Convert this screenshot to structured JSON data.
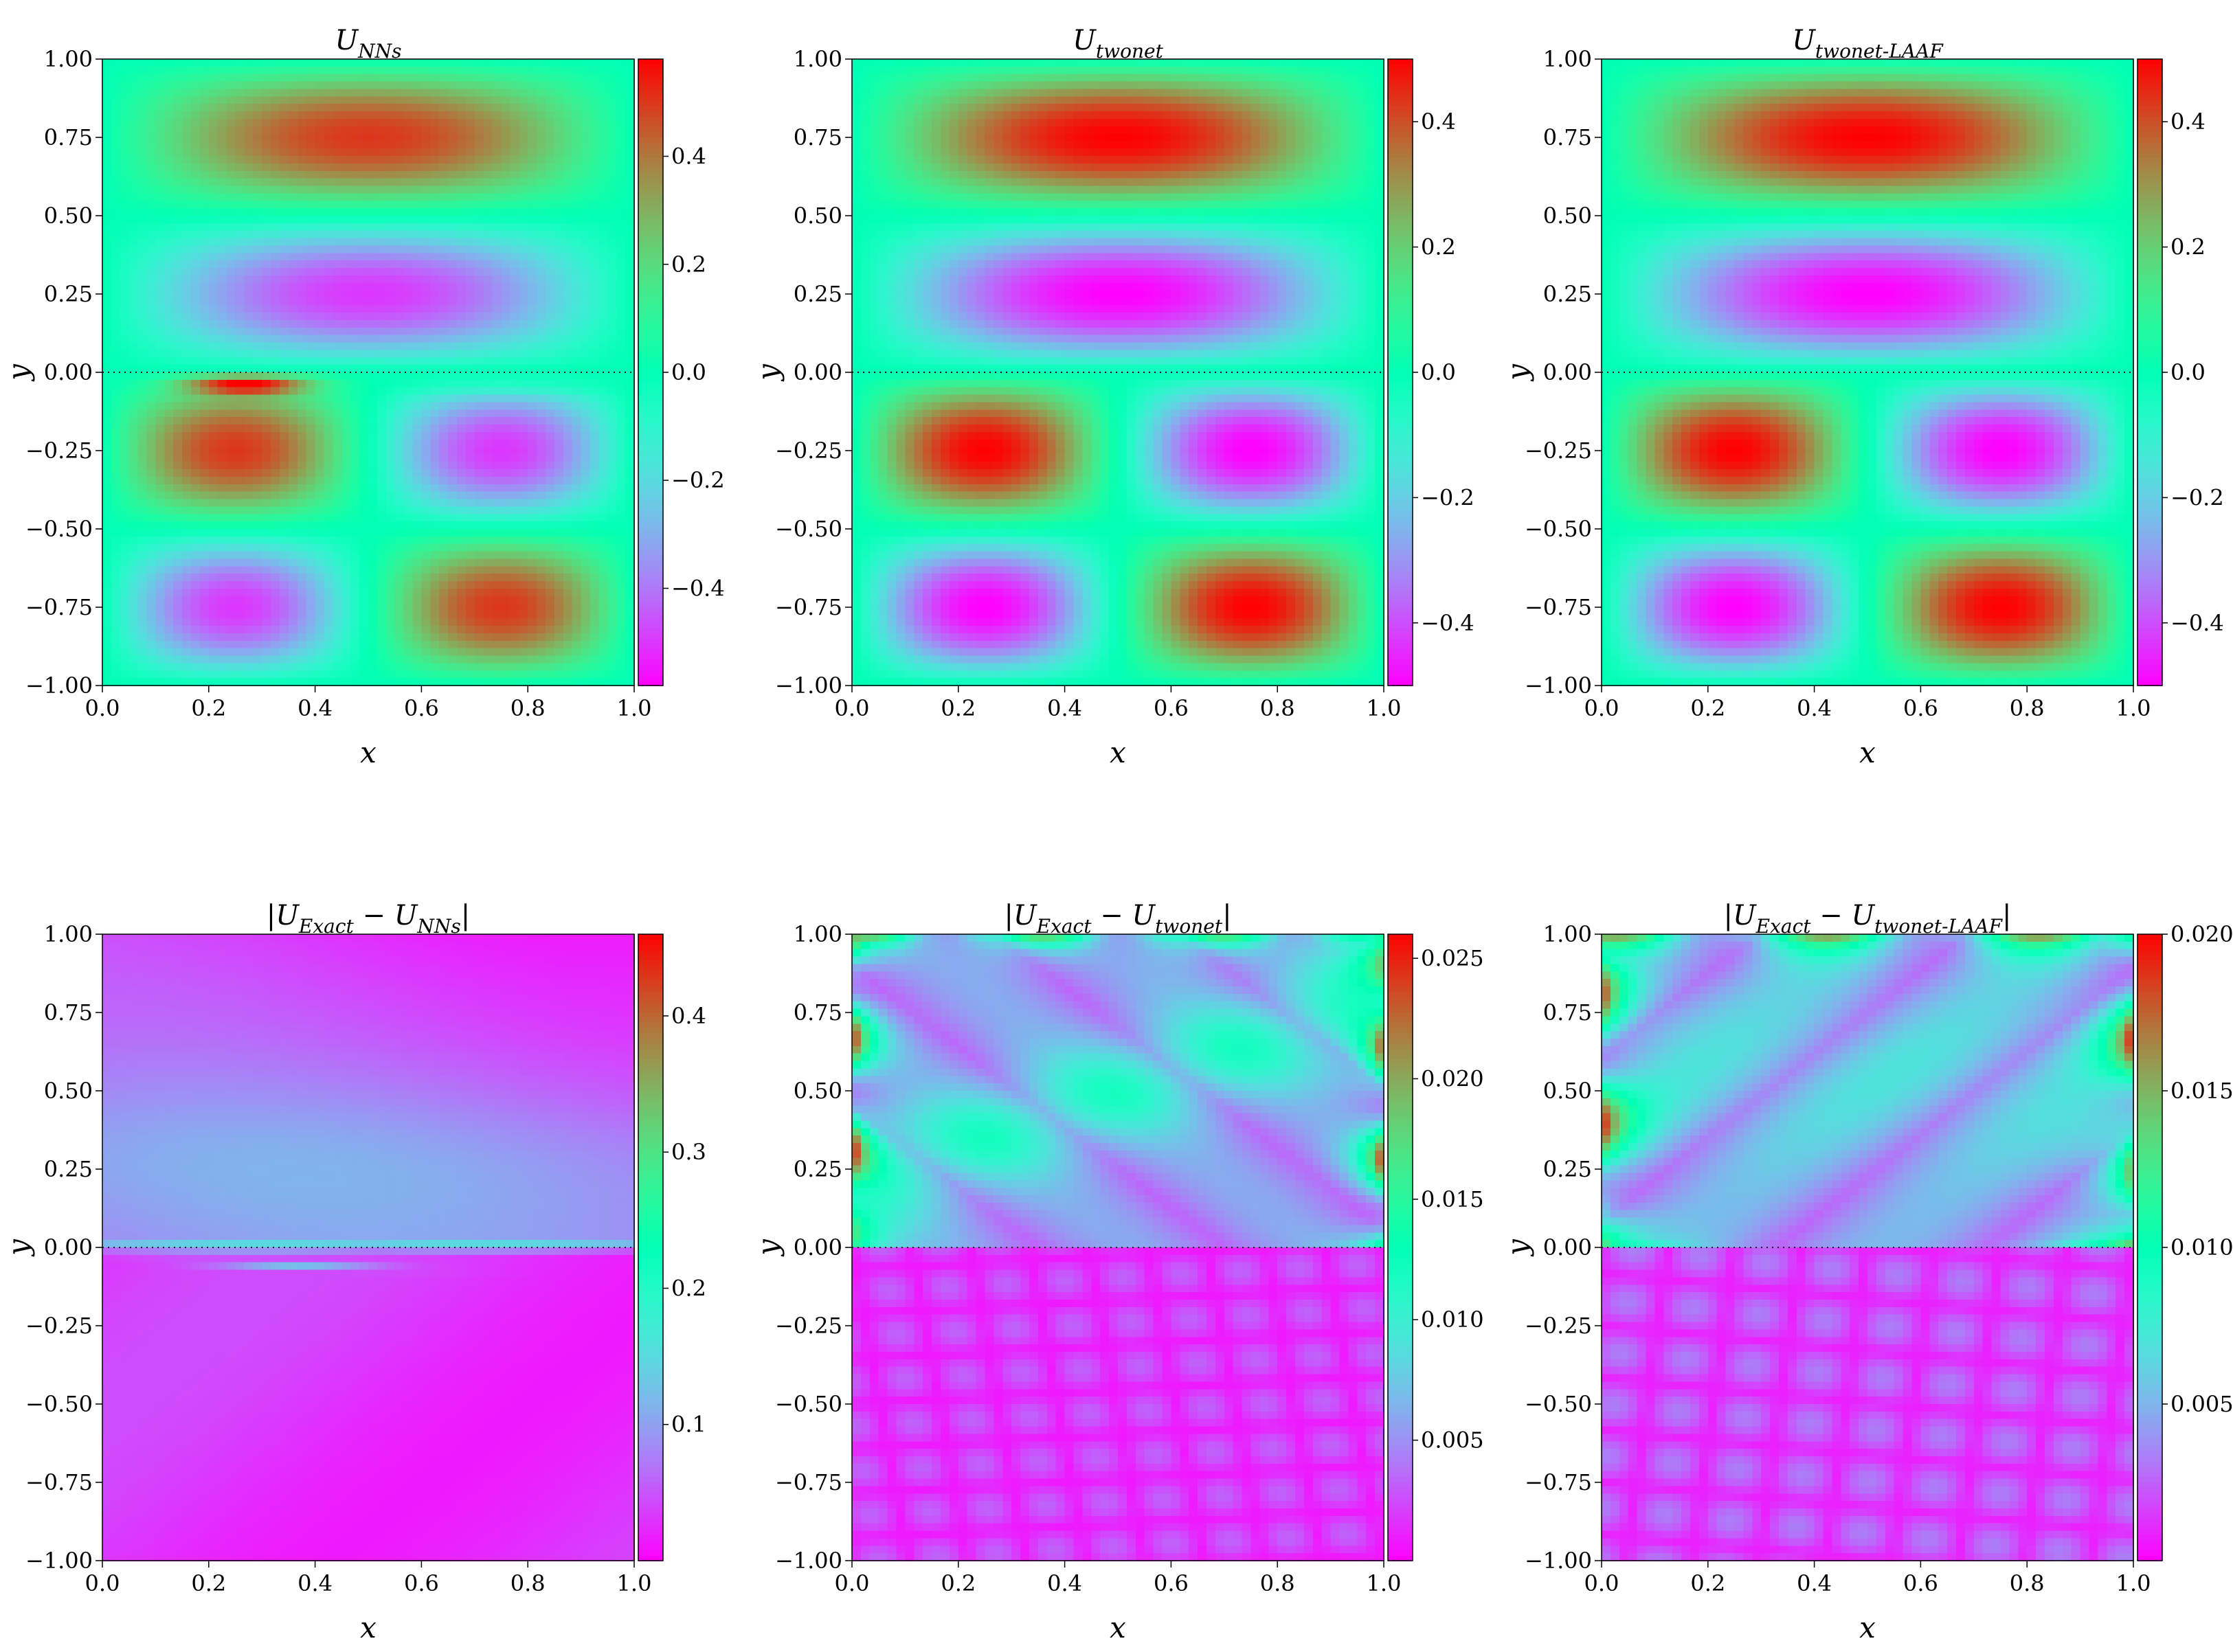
{
  "figure": {
    "type": "heatmap",
    "colormap": "rainbow",
    "xlabel": "x",
    "ylabel": "y"
  },
  "chart_data": [
    {
      "type": "heatmap",
      "title": "U_{NNs}",
      "title_parts": [
        {
          "t": "|U",
          "s": false
        },
        {
          "t": "NNs",
          "s": true
        }
      ],
      "field": "prediction",
      "variant": "nns",
      "xlabel": "x",
      "ylabel": "y",
      "xlim": [
        0.0,
        1.0
      ],
      "ylim": [
        -1.0,
        1.0
      ],
      "xticks": [
        "0.0",
        "0.2",
        "0.4",
        "0.6",
        "0.8",
        "1.0"
      ],
      "yticks": [
        "−1.00",
        "−0.75",
        "−0.50",
        "−0.25",
        "0.00",
        "0.25",
        "0.50",
        "0.75",
        "1.00"
      ],
      "colorbar": {
        "min": -0.58,
        "max": 0.58,
        "ticks": [
          0.4,
          0.2,
          0.0,
          -0.2,
          -0.4
        ],
        "tick_labels": [
          "0.4",
          "0.2",
          "0.0",
          "−0.2",
          "−0.4"
        ]
      },
      "description_values": {
        "upper_max": 0.5,
        "upper_min": -0.5
      }
    },
    {
      "type": "heatmap",
      "title": "U_{twonet}",
      "field": "prediction",
      "variant": "twonet",
      "xlabel": "x",
      "ylabel": "y",
      "xlim": [
        0.0,
        1.0
      ],
      "ylim": [
        -1.0,
        1.0
      ],
      "xticks": [
        "0.0",
        "0.2",
        "0.4",
        "0.6",
        "0.8",
        "1.0"
      ],
      "yticks": [
        "−1.00",
        "−0.75",
        "−0.50",
        "−0.25",
        "0.00",
        "0.25",
        "0.50",
        "0.75",
        "1.00"
      ],
      "colorbar": {
        "min": -0.5,
        "max": 0.5,
        "ticks": [
          0.4,
          0.2,
          0.0,
          -0.2,
          -0.4
        ],
        "tick_labels": [
          "0.4",
          "0.2",
          "0.0",
          "−0.2",
          "−0.4"
        ]
      }
    },
    {
      "type": "heatmap",
      "title": "U_{twonet-LAAF}",
      "field": "prediction",
      "variant": "laaf",
      "xlabel": "x",
      "ylabel": "y",
      "xlim": [
        0.0,
        1.0
      ],
      "ylim": [
        -1.0,
        1.0
      ],
      "xticks": [
        "0.0",
        "0.2",
        "0.4",
        "0.6",
        "0.8",
        "1.0"
      ],
      "yticks": [
        "−1.00",
        "−0.75",
        "−0.50",
        "−0.25",
        "0.00",
        "0.25",
        "0.50",
        "0.75",
        "1.00"
      ],
      "colorbar": {
        "min": -0.5,
        "max": 0.5,
        "ticks": [
          0.4,
          0.2,
          0.0,
          -0.2,
          -0.4
        ],
        "tick_labels": [
          "0.4",
          "0.2",
          "0.0",
          "−0.2",
          "−0.4"
        ]
      }
    },
    {
      "type": "heatmap",
      "title": "|U_{Exact} − U_{NNs}|",
      "field": "abs_error",
      "variant": "nns",
      "xlabel": "x",
      "ylabel": "y",
      "xlim": [
        0.0,
        1.0
      ],
      "ylim": [
        -1.0,
        1.0
      ],
      "xticks": [
        "0.0",
        "0.2",
        "0.4",
        "0.6",
        "0.8",
        "1.0"
      ],
      "yticks": [
        "−1.00",
        "−0.75",
        "−0.50",
        "−0.25",
        "0.00",
        "0.25",
        "0.50",
        "0.75",
        "1.00"
      ],
      "colorbar": {
        "min": 0.0,
        "max": 0.46,
        "ticks": [
          0.4,
          0.3,
          0.2,
          0.1
        ],
        "tick_labels": [
          "0.4",
          "0.3",
          "0.2",
          "0.1"
        ]
      }
    },
    {
      "type": "heatmap",
      "title": "|U_{Exact} − U_{twonet}|",
      "field": "abs_error",
      "variant": "twonet",
      "xlabel": "x",
      "ylabel": "y",
      "xlim": [
        0.0,
        1.0
      ],
      "ylim": [
        -1.0,
        1.0
      ],
      "xticks": [
        "0.0",
        "0.2",
        "0.4",
        "0.6",
        "0.8",
        "1.0"
      ],
      "yticks": [
        "−1.00",
        "−0.75",
        "−0.50",
        "−0.25",
        "0.00",
        "0.25",
        "0.50",
        "0.75",
        "1.00"
      ],
      "colorbar": {
        "min": 0.0,
        "max": 0.026,
        "ticks": [
          0.025,
          0.02,
          0.015,
          0.01,
          0.005
        ],
        "tick_labels": [
          "0.025",
          "0.020",
          "0.015",
          "0.010",
          "0.005"
        ]
      }
    },
    {
      "type": "heatmap",
      "title": "|U_{Exact} − U_{twonet-LAAF}|",
      "field": "abs_error",
      "variant": "laaf",
      "xlabel": "x",
      "ylabel": "y",
      "xlim": [
        0.0,
        1.0
      ],
      "ylim": [
        -1.0,
        1.0
      ],
      "xticks": [
        "0.0",
        "0.2",
        "0.4",
        "0.6",
        "0.8",
        "1.0"
      ],
      "yticks": [
        "−1.00",
        "−0.75",
        "−0.50",
        "−0.25",
        "0.00",
        "0.25",
        "0.50",
        "0.75",
        "1.00"
      ],
      "colorbar": {
        "min": 0.0,
        "max": 0.02,
        "ticks": [
          0.02,
          0.015,
          0.01,
          0.005
        ],
        "tick_labels": [
          "0.020",
          "0.015",
          "0.010",
          "0.005"
        ]
      }
    }
  ]
}
